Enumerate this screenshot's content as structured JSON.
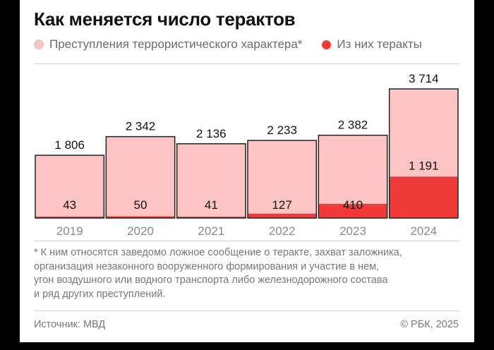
{
  "title": "Как меняется число терактов",
  "legend": {
    "total_label": "Преступления террористического характера*",
    "attacks_label": "Из них теракты"
  },
  "colors": {
    "total": "#ffc4c4",
    "attacks": "#f03a3a",
    "outline": "#222222"
  },
  "chart_data": {
    "type": "bar",
    "title": "Как меняется число терактов",
    "categories": [
      "2019",
      "2020",
      "2021",
      "2022",
      "2023",
      "2024"
    ],
    "series": [
      {
        "name": "Преступления террористического характера*",
        "values": [
          1806,
          2342,
          2136,
          2233,
          2382,
          3714
        ],
        "labels": [
          "1 806",
          "2 342",
          "2 136",
          "2 233",
          "2 382",
          "3 714"
        ]
      },
      {
        "name": "Из них теракты",
        "values": [
          43,
          50,
          41,
          127,
          410,
          1191
        ],
        "labels": [
          "43",
          "50",
          "41",
          "127",
          "410",
          "1 191"
        ]
      }
    ],
    "xlabel": "",
    "ylabel": "",
    "ylim": [
      0,
      3714
    ],
    "grid": false,
    "stacked": "overlay"
  },
  "footnote": "* К ним относятся заведомо ложное сообщение о теракте, захват заложника,\nорганизация незаконного вооруженного формирования и участие в нем,\nугон воздушного или водного транспорта либо железнодорожного состава\nи ряд других преступлений.",
  "source": "Источник: МВД",
  "copyright": "© РБК, 2025"
}
